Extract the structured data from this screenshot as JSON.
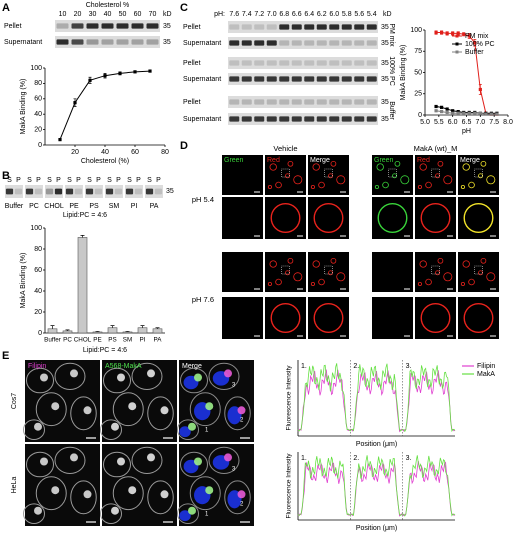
{
  "panel_labels": [
    "A",
    "B",
    "C",
    "D",
    "E"
  ],
  "panel_a": {
    "gel_title": "Cholesterol %",
    "lanes": [
      "10",
      "20",
      "30",
      "40",
      "50",
      "60",
      "70"
    ],
    "kd": "kD",
    "rows": [
      "Pellet",
      "Supernatant"
    ],
    "marker": "35"
  },
  "panel_b": {
    "lane_pair": [
      "S",
      "P"
    ],
    "groups": [
      "Buffer",
      "PC",
      "CHOL",
      "PE",
      "PS",
      "SM",
      "PI",
      "PA"
    ],
    "note": "Lipid:PC = 4:6",
    "marker": "35"
  },
  "panel_c": {
    "ph_label": "pH:",
    "ph": [
      "7.6",
      "7.4",
      "7.2",
      "7.0",
      "6.8",
      "6.6",
      "6.4",
      "6.2",
      "6.0",
      "5.8",
      "5.6",
      "5.4"
    ],
    "kd": "kD",
    "marker": "35",
    "conditions": [
      "PM mix",
      "100% PC",
      "Buffer"
    ],
    "rows": [
      "Pellet",
      "Supernatant"
    ]
  },
  "panel_d": {
    "groups": [
      "Vehicle",
      "MakA (wt)_M"
    ],
    "channels": [
      "Green",
      "Red",
      "Merge"
    ],
    "rows": [
      "pH 5.4",
      "pH 7.6"
    ]
  },
  "panel_e": {
    "cells": [
      "Cos7",
      "HeLa"
    ],
    "channels": [
      "Filipin",
      "A568-MakA",
      "Merge"
    ],
    "cell_marks": [
      "1",
      "2",
      "3"
    ],
    "ylabel": "Fluorescence Intensity",
    "xlabel": "Position (μm)",
    "legend": [
      "Filipin",
      "MakA"
    ],
    "regions": [
      "1.",
      "2.",
      "3."
    ]
  },
  "chart_data": [
    {
      "type": "line",
      "xlabel": "Cholesterol (%)",
      "ylabel": "MakA Binding (%)",
      "x": [
        10,
        20,
        30,
        40,
        50,
        60,
        70
      ],
      "values": [
        7,
        55,
        84,
        90,
        93,
        95,
        96
      ],
      "errors": [
        1,
        5,
        4,
        3,
        2,
        1,
        1
      ],
      "color": "#000000",
      "xlim": [
        0,
        80
      ],
      "xticks": [
        20,
        40,
        60,
        80
      ],
      "ylim": [
        0,
        100
      ],
      "yticks": [
        0,
        20,
        40,
        60,
        80,
        100
      ]
    },
    {
      "type": "bar",
      "xlabel": "Lipid:PC = 4:6",
      "ylabel": "MakA Binding (%)",
      "categories": [
        "Buffer",
        "PC",
        "CHOL",
        "PE",
        "PS",
        "SM",
        "PI",
        "PA"
      ],
      "values": [
        4,
        2,
        91,
        1,
        5,
        1,
        5,
        4
      ],
      "errors": [
        3,
        1,
        2,
        0.5,
        2,
        0.5,
        2,
        1
      ],
      "color": "#c8c8c8",
      "ylim": [
        0,
        100
      ],
      "yticks": [
        0,
        20,
        40,
        60,
        80,
        100
      ]
    },
    {
      "type": "line",
      "xlabel": "pH",
      "ylabel": "MakA Binding (%)",
      "x": [
        5.4,
        5.6,
        5.8,
        6.0,
        6.2,
        6.4,
        6.6,
        6.8,
        7.0,
        7.2,
        7.4,
        7.6
      ],
      "series": [
        {
          "name": "PM mix",
          "color": "#e0201b",
          "values": [
            97,
            97,
            96,
            96,
            96,
            95,
            93,
            85,
            30,
            2,
            1,
            1
          ],
          "errors": [
            2,
            2,
            2,
            2,
            2,
            2,
            3,
            4,
            6,
            1,
            1,
            1
          ]
        },
        {
          "name": "100% PC",
          "color": "#000000",
          "values": [
            10,
            9,
            7,
            5,
            4,
            3,
            3,
            3,
            2,
            2,
            2,
            2
          ]
        },
        {
          "name": "Buffer",
          "color": "#808080",
          "values": [
            5,
            4,
            3,
            2,
            2,
            2,
            2,
            2,
            2,
            1,
            1,
            1
          ]
        }
      ],
      "xlim": [
        5.0,
        8.0
      ],
      "xticks": [
        {
          "value": 5,
          "label": "5.0"
        },
        {
          "value": 5.5,
          "label": "5.5"
        },
        {
          "value": 6,
          "label": "6.0"
        },
        {
          "value": 6.5,
          "label": "6.5"
        },
        {
          "value": 7,
          "label": "7.0"
        },
        {
          "value": 7.5,
          "label": "7.5"
        },
        {
          "value": 8,
          "label": "8.0"
        }
      ],
      "ylim": [
        0,
        100
      ],
      "yticks": [
        0,
        25,
        50,
        75,
        100
      ],
      "legend": "upper right"
    }
  ]
}
